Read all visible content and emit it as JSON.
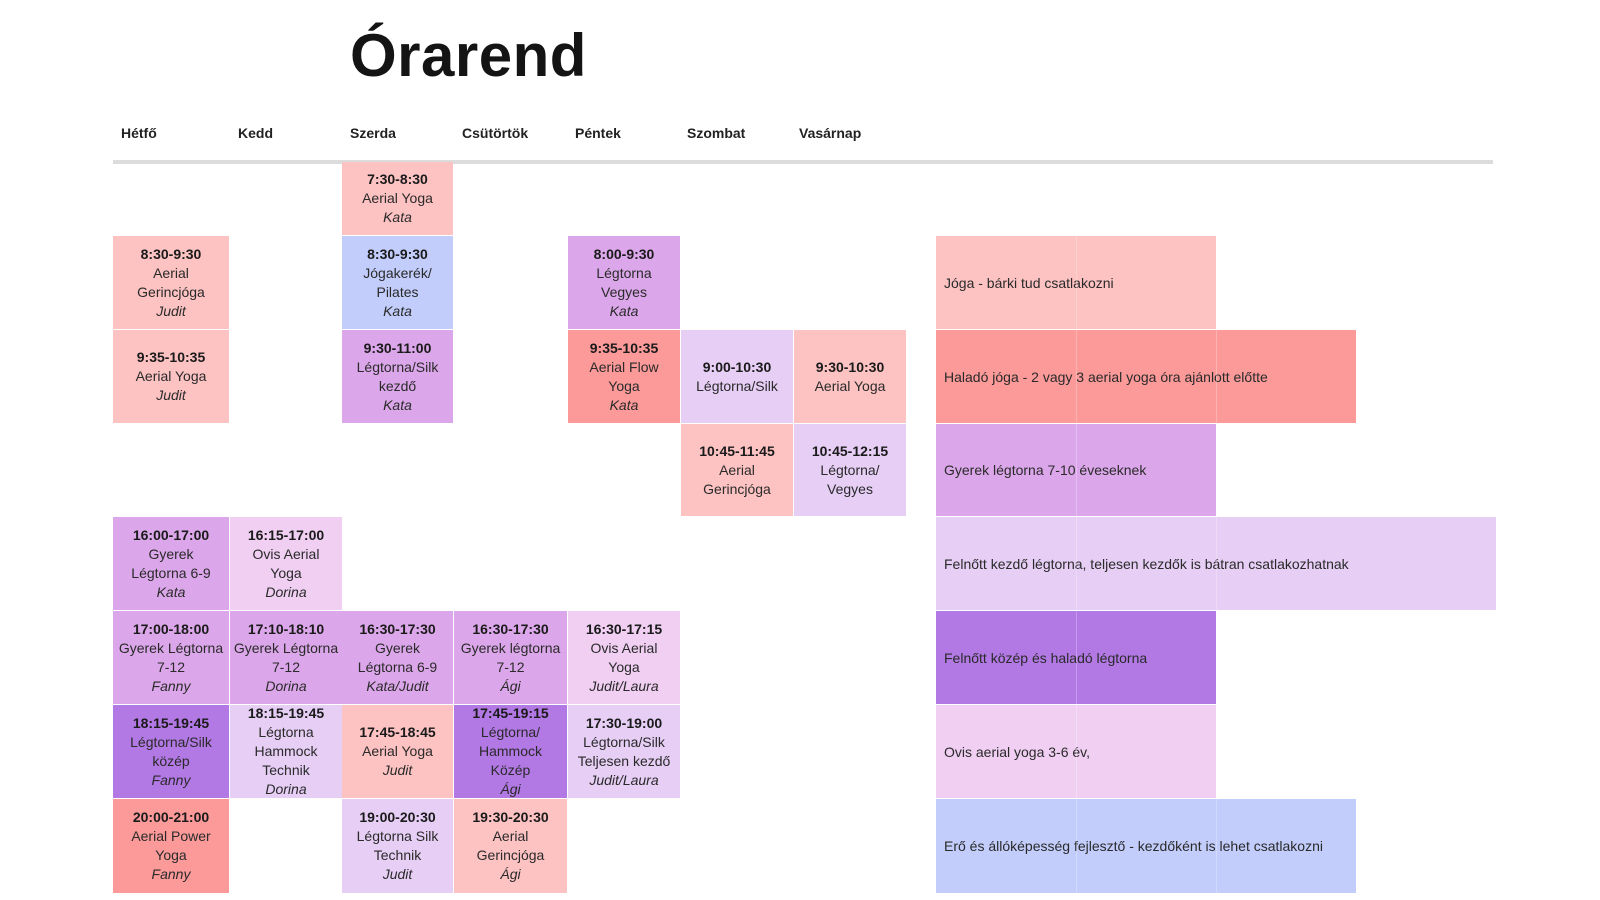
{
  "title": "Órarend",
  "days": [
    "Hétfő",
    "Kedd",
    "Szerda",
    "Csütörtök",
    "Péntek",
    "Szombat",
    "Vasárnap"
  ],
  "colors": {
    "joga": "#fdc2c2",
    "halado_joga": "#fc9999",
    "gyerek": "#dca7ea",
    "felnott_kezdo": "#e6cef5",
    "felnott_kozep": "#b278e4",
    "ovis": "#f0cff3",
    "ero": "#c2cdfb"
  },
  "classes": {
    "sze_0730": {
      "time": "7:30-8:30",
      "name": "Aerial Yoga",
      "teacher": "Kata"
    },
    "h_0830": {
      "time": "8:30-9:30",
      "name": "Aerial Gerincjóga",
      "teacher": "Judit"
    },
    "sze_0830": {
      "time": "8:30-9:30",
      "name": "Jógakerék/ Pilates",
      "teacher": "Kata"
    },
    "p_0800": {
      "time": "8:00-9:30",
      "name": "Légtorna Vegyes",
      "teacher": "Kata"
    },
    "h_0935": {
      "time": "9:35-10:35",
      "name": "Aerial Yoga",
      "teacher": "Judit"
    },
    "sze_0930": {
      "time": "9:30-11:00",
      "name": "Légtorna/Silk kezdő",
      "teacher": "Kata"
    },
    "p_0935": {
      "time": "9:35-10:35",
      "name": "Aerial Flow Yoga",
      "teacher": "Kata"
    },
    "szo_0900": {
      "time": "9:00-10:30",
      "name": "Légtorna/Silk"
    },
    "v_0930": {
      "time": "9:30-10:30",
      "name": "Aerial Yoga"
    },
    "szo_1045": {
      "time": "10:45-11:45",
      "name": "Aerial Gerincjóga"
    },
    "v_1045": {
      "time": "10:45-12:15",
      "name": "Légtorna/ Vegyes"
    },
    "h_1600": {
      "time": "16:00-17:00",
      "name": "Gyerek Légtorna 6-9",
      "teacher": "Kata"
    },
    "k_1615": {
      "time": "16:15-17:00",
      "name": "Ovis Aerial Yoga",
      "teacher": "Dorina"
    },
    "h_1700": {
      "time": "17:00-18:00",
      "name": "Gyerek Légtorna 7-12",
      "teacher": "Fanny"
    },
    "k_1710": {
      "time": "17:10-18:10",
      "name": "Gyerek Légtorna 7-12",
      "teacher": "Dorina"
    },
    "sze_1630": {
      "time": "16:30-17:30",
      "name": "Gyerek Légtorna 6-9",
      "teacher": "Kata/Judit"
    },
    "cs_1630": {
      "time": "16:30-17:30",
      "name": "Gyerek légtorna 7-12",
      "teacher": "Ági"
    },
    "p_1630": {
      "time": "16:30-17:15",
      "name": "Ovis Aerial Yoga",
      "teacher": "Judit/Laura"
    },
    "h_1815": {
      "time": "18:15-19:45",
      "name": "Légtorna/Silk közép",
      "teacher": "Fanny"
    },
    "k_1815": {
      "time": "18:15-19:45",
      "name": "Légtorna Hammock Technik",
      "teacher": "Dorina"
    },
    "sze_1745": {
      "time": "17:45-18:45",
      "name": "Aerial Yoga",
      "teacher": "Judit"
    },
    "cs_1745": {
      "time": "17:45-19:15",
      "name": "Légtorna/ Hammock Közép",
      "teacher": "Ági"
    },
    "p_1730": {
      "time": "17:30-19:00",
      "name": "Légtorna/Silk Teljesen kezdő",
      "teacher": "Judit/Laura"
    },
    "h_2000": {
      "time": "20:00-21:00",
      "name": "Aerial Power Yoga",
      "teacher": "Fanny"
    },
    "sze_1900": {
      "time": "19:00-20:30",
      "name": "Légtorna Silk Technik",
      "teacher": "Judit"
    },
    "cs_1930": {
      "time": "19:30-20:30",
      "name": "Aerial Gerincjóga",
      "teacher": "Ági"
    }
  },
  "legend": {
    "joga": "Jóga - bárki tud csatlakozni",
    "halado_joga": "Haladó jóga - 2 vagy 3 aerial yoga óra ajánlott előtte",
    "gyerek": "Gyerek légtorna 7-10 éveseknek",
    "felnott_kezdo": "Felnőtt kezdő légtorna, teljesen kezdők is bátran csatlakozhatnak",
    "felnott_kozep": "Felnőtt közép és haladó légtorna",
    "ovis": "Ovis aerial yoga 3-6 év,",
    "ero": "Erő és állóképesség fejlesztő - kezdőként is lehet csatlakozni"
  }
}
